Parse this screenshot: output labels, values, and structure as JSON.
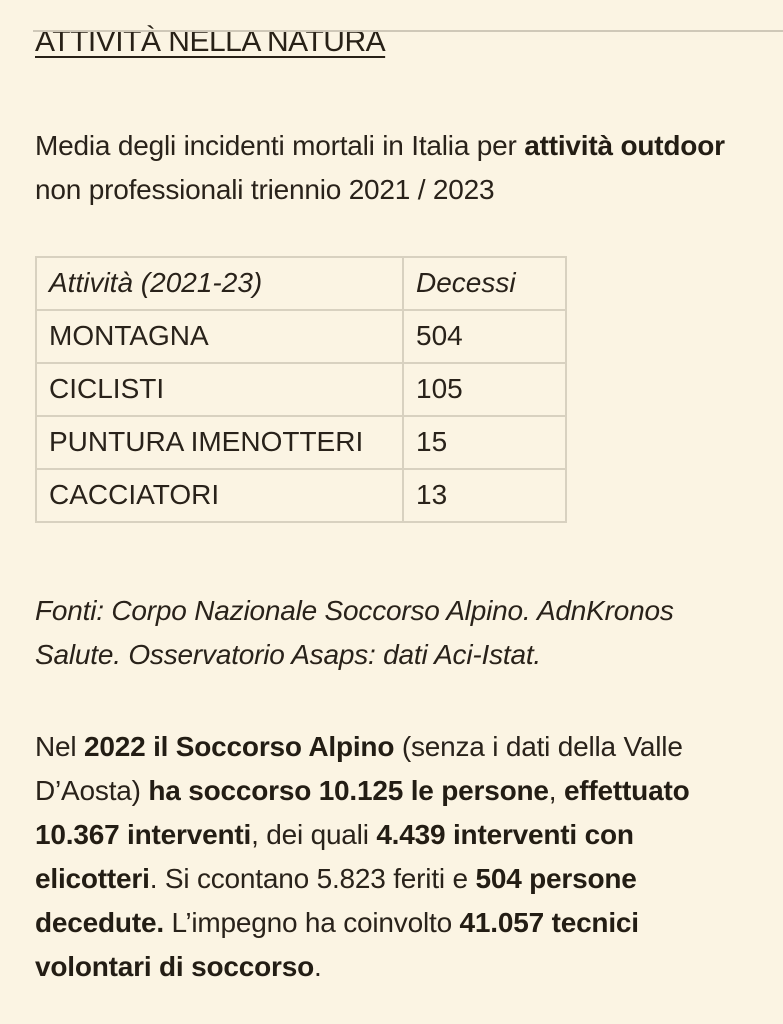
{
  "colors": {
    "background": "#fbf4e3",
    "text": "#29221a",
    "bold_text": "#231d14",
    "table_border": "#d8d1c0",
    "top_divider": "#cfc8b8"
  },
  "header": {
    "title": "ATTIVITÀ NELLA NATURA"
  },
  "intro": {
    "segments": [
      {
        "text": "Media degli incidenti mortali in Italia per ",
        "bold": false
      },
      {
        "text": "attività outdoor",
        "bold": true
      },
      {
        "text": " non professionali triennio 2021 / 2023",
        "bold": false
      }
    ]
  },
  "table": {
    "columns": [
      "Attività (2021-23)",
      "Decessi"
    ],
    "rows": [
      [
        "MONTAGNA",
        "504"
      ],
      [
        "CICLISTI",
        "105"
      ],
      [
        "PUNTURA IMENOTTERI",
        "15"
      ],
      [
        "CACCIATORI",
        "13"
      ]
    ]
  },
  "sources": {
    "text": "Fonti: Corpo Nazionale Soccorso Alpino. AdnKronos Salute. Osservatorio Asaps: dati Aci-Istat."
  },
  "stats": {
    "segments": [
      {
        "text": "Nel ",
        "bold": false
      },
      {
        "text": "2022 il Soccorso Alpino",
        "bold": true
      },
      {
        "text": " (senza i dati della Valle D’Aosta) ",
        "bold": false
      },
      {
        "text": "ha soccorso 10.125 le persone",
        "bold": true
      },
      {
        "text": ", ",
        "bold": false
      },
      {
        "text": "effettuato 10.367 interventi",
        "bold": true
      },
      {
        "text": ", dei quali ",
        "bold": false
      },
      {
        "text": "4.439 interventi con elicotteri",
        "bold": true
      },
      {
        "text": ". Si ccontano 5.823 feriti e ",
        "bold": false
      },
      {
        "text": "504 persone decedute.",
        "bold": true
      },
      {
        "text": " L’impegno ha coinvolto ",
        "bold": false
      },
      {
        "text": "41.057 tecnici volontari di soccorso",
        "bold": true
      },
      {
        "text": ".",
        "bold": false
      }
    ]
  }
}
